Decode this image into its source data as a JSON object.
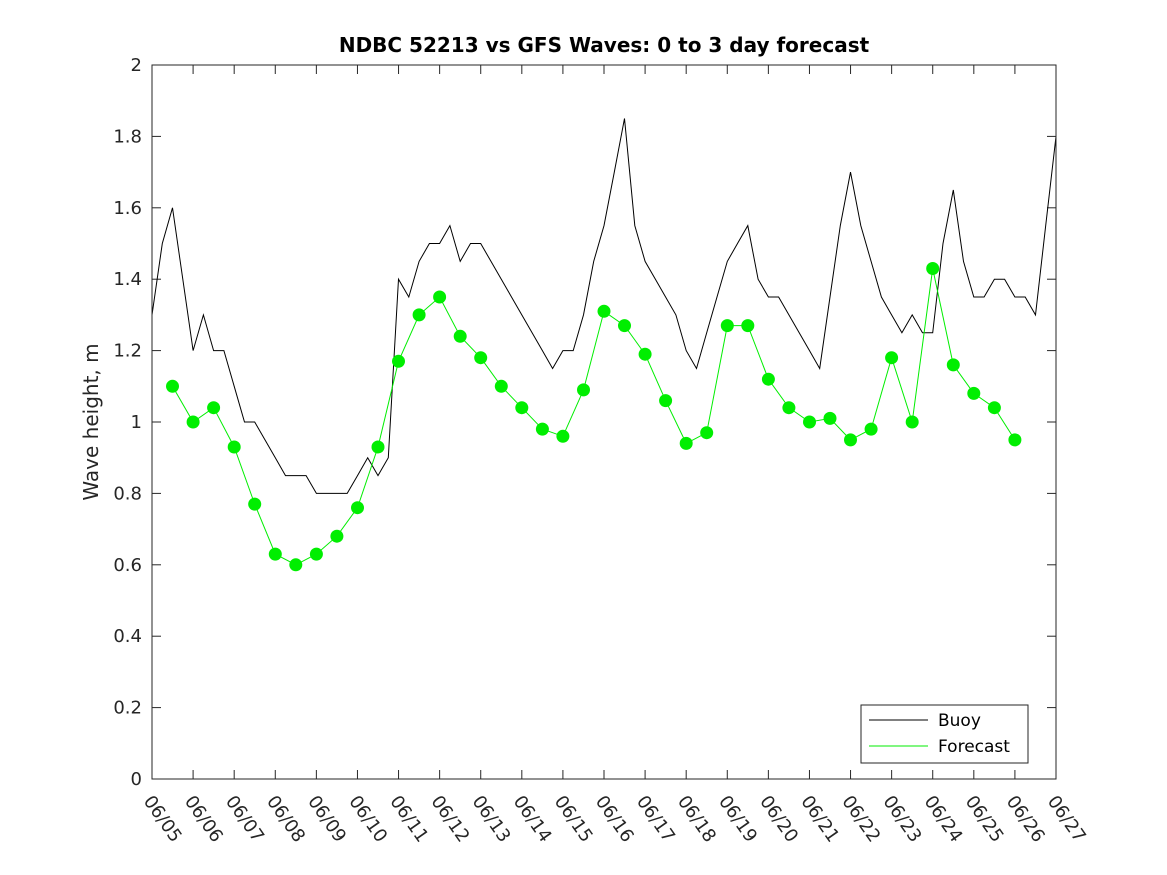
{
  "chart_data": {
    "type": "line",
    "title": "NDBC 52213 vs GFS Waves: 0 to 3 day forecast",
    "xlabel": "",
    "ylabel": "Wave height, m",
    "xlim": [
      "06/05",
      "06/27"
    ],
    "ylim": [
      0,
      2
    ],
    "yticks": [
      "0",
      "0.2",
      "0.4",
      "0.6",
      "0.8",
      "1",
      "1.2",
      "1.4",
      "1.6",
      "1.8",
      "2"
    ],
    "xticks": [
      "06/05",
      "06/06",
      "06/07",
      "06/08",
      "06/09",
      "06/10",
      "06/11",
      "06/12",
      "06/13",
      "06/14",
      "06/15",
      "06/16",
      "06/17",
      "06/18",
      "06/19",
      "06/20",
      "06/21",
      "06/22",
      "06/23",
      "06/24",
      "06/25",
      "06/26",
      "06/27"
    ],
    "grid": false,
    "legend_position": "bottom-right",
    "colors": {
      "buoy": "#000000",
      "forecast": "#00ee00"
    },
    "series": [
      {
        "name": "Buoy",
        "x": [
          "06/05 00:00",
          "06/05 06:00",
          "06/05 12:00",
          "06/05 18:00",
          "06/06 00:00",
          "06/06 06:00",
          "06/06 12:00",
          "06/06 18:00",
          "06/07 00:00",
          "06/07 06:00",
          "06/07 12:00",
          "06/07 18:00",
          "06/08 00:00",
          "06/08 06:00",
          "06/08 12:00",
          "06/08 18:00",
          "06/09 00:00",
          "06/09 06:00",
          "06/09 12:00",
          "06/09 18:00",
          "06/10 00:00",
          "06/10 06:00",
          "06/10 12:00",
          "06/10 18:00",
          "06/11 00:00",
          "06/11 06:00",
          "06/11 12:00",
          "06/11 18:00",
          "06/12 00:00",
          "06/12 06:00",
          "06/12 12:00",
          "06/12 18:00",
          "06/13 00:00",
          "06/13 06:00",
          "06/13 12:00",
          "06/13 18:00",
          "06/14 00:00",
          "06/14 06:00",
          "06/14 12:00",
          "06/14 18:00",
          "06/15 00:00",
          "06/15 06:00",
          "06/15 12:00",
          "06/15 18:00",
          "06/16 00:00",
          "06/16 06:00",
          "06/16 12:00",
          "06/16 18:00",
          "06/17 00:00",
          "06/17 06:00",
          "06/17 12:00",
          "06/17 18:00",
          "06/18 00:00",
          "06/18 06:00",
          "06/18 12:00",
          "06/18 18:00",
          "06/19 00:00",
          "06/19 06:00",
          "06/19 12:00",
          "06/19 18:00",
          "06/20 00:00",
          "06/20 06:00",
          "06/20 12:00",
          "06/20 18:00",
          "06/21 00:00",
          "06/21 06:00",
          "06/21 12:00",
          "06/21 18:00",
          "06/22 00:00",
          "06/22 06:00",
          "06/22 12:00",
          "06/22 18:00",
          "06/23 00:00",
          "06/23 06:00",
          "06/23 12:00",
          "06/23 18:00",
          "06/24 00:00",
          "06/24 06:00",
          "06/24 12:00",
          "06/24 18:00",
          "06/25 00:00",
          "06/25 06:00",
          "06/25 12:00",
          "06/25 18:00",
          "06/26 00:00",
          "06/26 06:00",
          "06/26 12:00",
          "06/26 18:00",
          "06/27 00:00"
        ],
        "values": [
          1.3,
          1.5,
          1.6,
          1.4,
          1.2,
          1.3,
          1.2,
          1.2,
          1.1,
          1.0,
          1.0,
          0.95,
          0.9,
          0.85,
          0.85,
          0.85,
          0.8,
          0.8,
          0.8,
          0.8,
          0.85,
          0.9,
          0.85,
          0.9,
          1.4,
          1.35,
          1.45,
          1.5,
          1.5,
          1.55,
          1.45,
          1.5,
          1.5,
          1.45,
          1.4,
          1.35,
          1.3,
          1.25,
          1.2,
          1.15,
          1.2,
          1.2,
          1.3,
          1.45,
          1.55,
          1.7,
          1.85,
          1.55,
          1.45,
          1.4,
          1.35,
          1.3,
          1.2,
          1.15,
          1.25,
          1.35,
          1.45,
          1.5,
          1.55,
          1.4,
          1.35,
          1.35,
          1.3,
          1.25,
          1.2,
          1.15,
          1.35,
          1.55,
          1.7,
          1.55,
          1.45,
          1.35,
          1.3,
          1.25,
          1.3,
          1.25,
          1.25,
          1.5,
          1.65,
          1.45,
          1.35,
          1.35,
          1.4,
          1.4,
          1.35,
          1.35,
          1.3,
          1.55,
          1.8
        ]
      },
      {
        "name": "Forecast",
        "x": [
          "06/05 12:00",
          "06/06 00:00",
          "06/06 12:00",
          "06/07 00:00",
          "06/07 12:00",
          "06/08 00:00",
          "06/08 12:00",
          "06/09 00:00",
          "06/09 12:00",
          "06/10 00:00",
          "06/10 12:00",
          "06/11 00:00",
          "06/11 12:00",
          "06/12 00:00",
          "06/12 12:00",
          "06/13 00:00",
          "06/13 12:00",
          "06/14 00:00",
          "06/14 12:00",
          "06/15 00:00",
          "06/15 12:00",
          "06/16 00:00",
          "06/16 12:00",
          "06/17 00:00",
          "06/17 12:00",
          "06/18 00:00",
          "06/18 12:00",
          "06/19 00:00",
          "06/19 12:00",
          "06/20 00:00",
          "06/20 12:00",
          "06/21 00:00",
          "06/21 12:00",
          "06/22 00:00",
          "06/22 12:00",
          "06/23 00:00",
          "06/23 12:00",
          "06/24 00:00",
          "06/24 12:00",
          "06/25 00:00",
          "06/25 12:00",
          "06/26 00:00"
        ],
        "values": [
          1.1,
          1.0,
          1.04,
          0.93,
          0.77,
          0.63,
          0.6,
          0.63,
          0.68,
          0.76,
          0.93,
          1.17,
          1.3,
          1.35,
          1.24,
          1.18,
          1.1,
          1.04,
          0.98,
          0.96,
          1.09,
          1.31,
          1.27,
          1.19,
          1.06,
          0.94,
          0.97,
          1.27,
          1.27,
          1.12,
          1.04,
          1.0,
          1.01,
          0.95,
          0.98,
          1.18,
          1.0,
          1.43,
          1.16,
          1.08,
          1.04,
          0.95
        ]
      }
    ]
  }
}
